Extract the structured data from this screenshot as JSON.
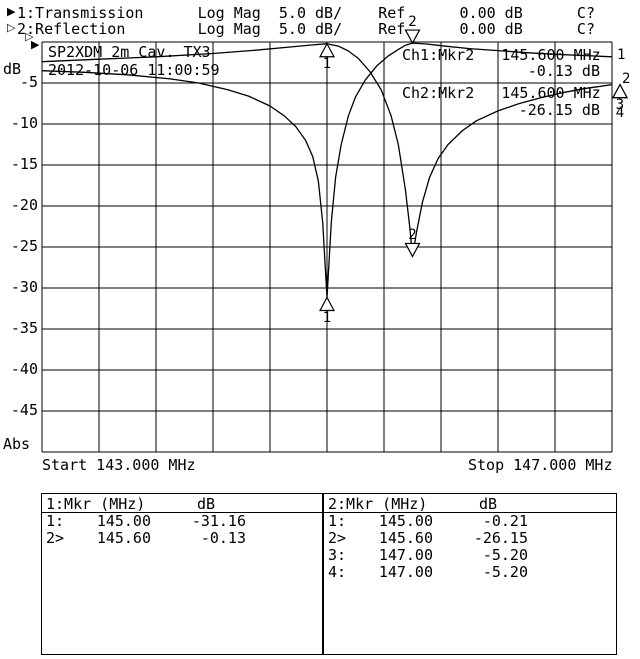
{
  "header": {
    "rows": [
      {
        "arrow": "▶",
        "text": "1:Transmission      Log Mag  5.0 dB/    Ref      0.00 dB      C?"
      },
      {
        "arrow": "▷",
        "text": "2:Reflection        Log Mag  5.0 dB/    Ref      0.00 dB      C?"
      }
    ],
    "ref_indicators": {
      "ch1": "▶",
      "ch2": "▷"
    }
  },
  "plot": {
    "title_line1": "SP2XDM 2m Cav. TX3",
    "title_line2": "2012-10-06 11:00:59",
    "y_axis": {
      "unit": "dB",
      "labels": [
        "-5",
        "-10",
        "-15",
        "-20",
        "-25",
        "-30",
        "-35",
        "-40",
        "-45"
      ],
      "bottom_label": "Abs"
    },
    "x_axis": {
      "start_label": "Start 143.000 MHz",
      "stop_label": "Stop 147.000 MHz"
    },
    "channel_readout": [
      {
        "line": "Ch1:Mkr2   145.600 MHz",
        "value": "-0.13 dB"
      },
      {
        "line": "Ch2:Mkr2   145.600 MHz",
        "value": "-26.15 dB"
      }
    ],
    "trace_end_labels": [
      "1",
      "2"
    ]
  },
  "marker_tables": [
    {
      "title": "1:Mkr (MHz)",
      "unit": "dB",
      "rows": [
        {
          "m": "1:",
          "f": "145.00",
          "v": "-31.16"
        },
        {
          "m": "2>",
          "f": "145.60",
          "v": "-0.13"
        }
      ]
    },
    {
      "title": "2:Mkr (MHz)",
      "unit": "dB",
      "rows": [
        {
          "m": "1:",
          "f": "145.00",
          "v": "-0.21"
        },
        {
          "m": "2>",
          "f": "145.60",
          "v": "-26.15"
        },
        {
          "m": "3:",
          "f": "147.00",
          "v": "-5.20"
        },
        {
          "m": "4:",
          "f": "147.00",
          "v": "-5.20"
        }
      ]
    }
  ],
  "chart_data": {
    "type": "line",
    "title": "SP2XDM 2m Cav. TX3",
    "subtitle": "2012-10-06 11:00:59",
    "x_unit": "MHz",
    "y_unit": "dB",
    "xlim": [
      143.0,
      147.0
    ],
    "ylim": [
      -50,
      0
    ],
    "y_per_div": 5.0,
    "x_divisions": 10,
    "y_divisions": 10,
    "grid": true,
    "x_start_label": "Start 143.000 MHz",
    "x_stop_label": "Stop 147.000 MHz",
    "series": [
      {
        "name": "1:Transmission",
        "format": "Log Mag",
        "scale": "5.0 dB/",
        "ref_db": 0.0,
        "cal": "C?",
        "x": [
          143.0,
          143.3,
          143.6,
          143.9,
          144.1,
          144.3,
          144.45,
          144.6,
          144.7,
          144.78,
          144.85,
          144.9,
          144.94,
          144.97,
          145.0,
          145.03,
          145.06,
          145.1,
          145.15,
          145.2,
          145.27,
          145.35,
          145.43,
          145.5,
          145.55,
          145.6,
          145.7,
          145.8,
          146.0,
          146.2,
          146.4,
          146.6,
          146.8,
          147.0
        ],
        "y": [
          -3.5,
          -3.7,
          -4.0,
          -4.5,
          -5.0,
          -5.8,
          -6.6,
          -7.8,
          -9.0,
          -10.3,
          -12.0,
          -14.0,
          -17.0,
          -22.0,
          -31.16,
          -22.0,
          -16.5,
          -12.5,
          -9.0,
          -6.7,
          -4.6,
          -2.9,
          -1.7,
          -0.9,
          -0.4,
          -0.13,
          -0.25,
          -0.45,
          -0.8,
          -1.05,
          -1.3,
          -1.5,
          -1.65,
          -1.8
        ]
      },
      {
        "name": "2:Reflection",
        "format": "Log Mag",
        "scale": "5.0 dB/",
        "ref_db": 0.0,
        "cal": "C?",
        "x": [
          143.0,
          143.4,
          143.8,
          144.2,
          144.5,
          144.75,
          144.9,
          145.0,
          145.08,
          145.15,
          145.22,
          145.3,
          145.38,
          145.45,
          145.5,
          145.55,
          145.58,
          145.6,
          145.63,
          145.67,
          145.72,
          145.78,
          145.85,
          145.95,
          146.05,
          146.2,
          146.35,
          146.5,
          146.65,
          146.8,
          146.9,
          147.0
        ],
        "y": [
          -2.4,
          -2.1,
          -1.8,
          -1.4,
          -1.0,
          -0.6,
          -0.35,
          -0.21,
          -0.5,
          -1.1,
          -2.0,
          -3.6,
          -5.8,
          -9.0,
          -12.5,
          -18.0,
          -22.5,
          -26.15,
          -23.0,
          -19.5,
          -16.5,
          -14.2,
          -12.5,
          -10.8,
          -9.6,
          -8.4,
          -7.5,
          -6.8,
          -6.2,
          -5.7,
          -5.45,
          -5.2
        ]
      }
    ],
    "markers": [
      {
        "channel": 1,
        "number": "1",
        "freq_mhz": 145.0,
        "db": -31.16,
        "dir": "up"
      },
      {
        "channel": 1,
        "number": "2",
        "freq_mhz": 145.6,
        "db": -0.13,
        "dir": "down"
      },
      {
        "channel": 2,
        "number": "1",
        "freq_mhz": 145.0,
        "db": -0.21,
        "dir": "up"
      },
      {
        "channel": 2,
        "number": "2",
        "freq_mhz": 145.6,
        "db": -26.15,
        "dir": "down"
      },
      {
        "channel": 2,
        "number": "3",
        "freq_mhz": 147.0,
        "db": -5.2,
        "dir": "up",
        "dx": 8
      },
      {
        "channel": 2,
        "number": "4",
        "freq_mhz": 147.0,
        "db": -5.2,
        "dir": "up",
        "dx": 8,
        "label_dy": 8
      }
    ]
  }
}
